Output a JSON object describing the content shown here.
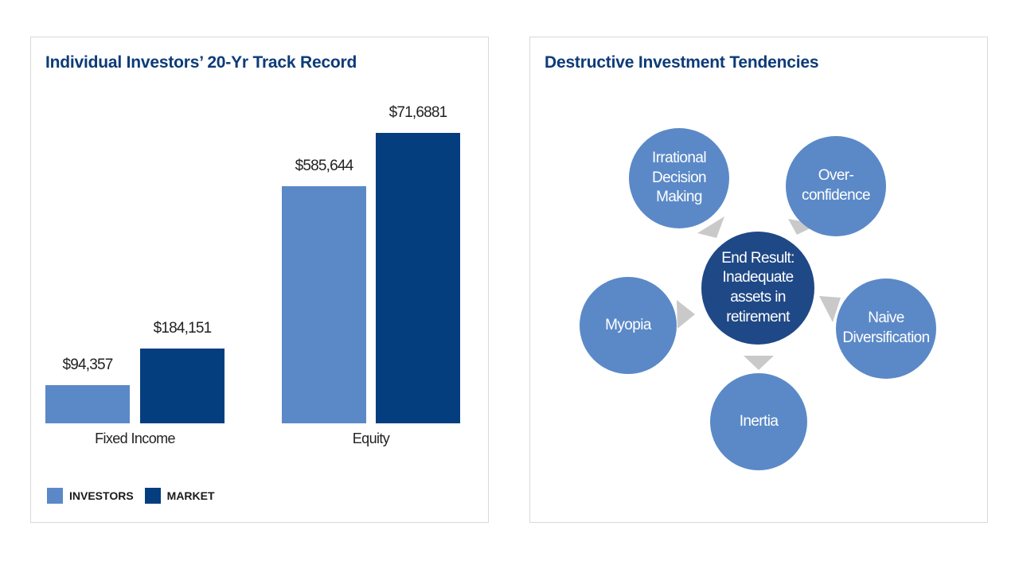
{
  "left": {
    "title": "Individual Investors’ 20-Yr Track Record",
    "legend": [
      {
        "label": "INVESTORS",
        "color": "#5b89c7"
      },
      {
        "label": "MARKET",
        "color": "#053e7e"
      }
    ]
  },
  "right": {
    "title": "Destructive Investment Tendencies",
    "center": "End Result: Inadequate assets in retirement",
    "nodes": {
      "irrational": "Irrational Decision Making",
      "overconfidence": "Over-confidence",
      "naive": "Naive Diversification",
      "inertia": "Inertia",
      "myopia": "Myopia"
    },
    "colors": {
      "node": "#5b89c7",
      "center": "#1f4886",
      "arrow": "#c9c9c9"
    }
  },
  "chart_data": [
    {
      "type": "bar",
      "title": "Individual Investors’ 20-Yr Track Record",
      "categories": [
        "Fixed Income",
        "Equity"
      ],
      "series": [
        {
          "name": "INVESTORS",
          "values": [
            94357,
            585644
          ],
          "labels": [
            "$94,357",
            "$585,644"
          ]
        },
        {
          "name": "MARKET",
          "values": [
            184151,
            716881
          ],
          "labels": [
            "$184,151",
            "$71,6881"
          ]
        }
      ],
      "legend_position": "bottom-left",
      "grid": false
    }
  ]
}
